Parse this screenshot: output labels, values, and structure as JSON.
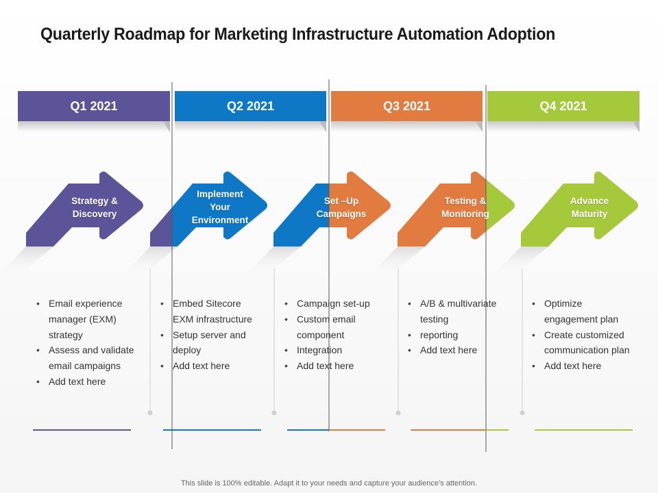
{
  "title": "Quarterly Roadmap for Marketing Infrastructure Automation Adoption",
  "quarters": [
    {
      "label": "Q1 2021",
      "color": "#5b5499"
    },
    {
      "label": "Q2 2021",
      "color": "#0e78c7"
    },
    {
      "label": "Q3 2021",
      "color": "#e27b3f"
    },
    {
      "label": "Q4 2021",
      "color": "#a6c93b"
    }
  ],
  "stages": [
    {
      "label_lines": [
        "Strategy &",
        "Discovery"
      ],
      "color": "#5b5499",
      "bullets": [
        "Email experience manager (EXM) strategy",
        "Assess and validate email campaigns",
        "Add text here"
      ]
    },
    {
      "label_lines": [
        "Implement",
        "Your",
        "Environment"
      ],
      "color": "#0e78c7",
      "bullets": [
        "Embed Sitecore EXM infrastructure",
        "Setup server and deploy",
        "Add text here"
      ]
    },
    {
      "label_lines": [
        "Set –Up",
        "Campaigns"
      ],
      "color": "#e27b3f",
      "bullets": [
        "Campaign set-up",
        "Custom email component",
        "Integration",
        "Add text here"
      ]
    },
    {
      "label_lines": [
        "Testing &",
        "Monitoring"
      ],
      "color": "#e27b3f",
      "bullets": [
        "A/B & multivariate testing",
        "reporting",
        "Add text here"
      ]
    },
    {
      "label_lines": [
        "Advance",
        "Maturity"
      ],
      "color": "#a6c93b",
      "bullets": [
        "Optimize engagement plan",
        "Create customized communication plan",
        "Add text here"
      ]
    }
  ],
  "footer": "This slide is 100% editable. Adapt it to your needs and capture your audience’s attention."
}
